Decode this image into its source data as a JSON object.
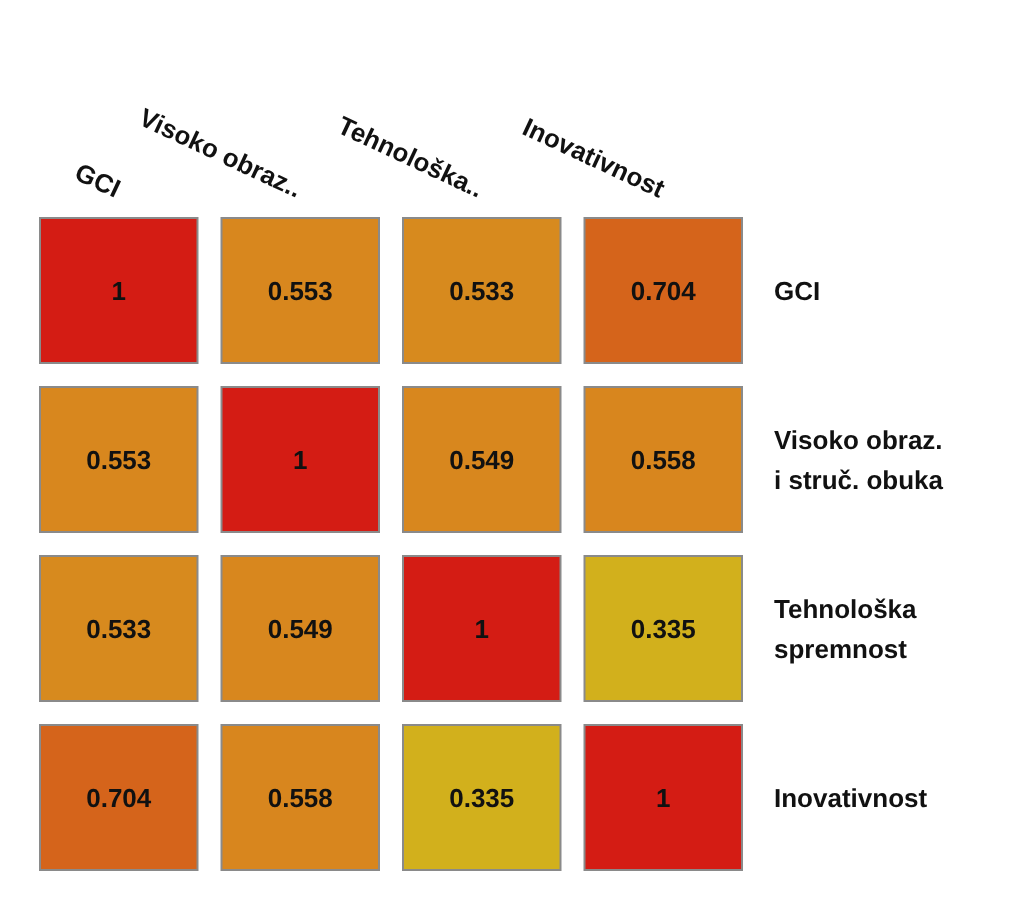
{
  "chart_data": {
    "type": "heatmap",
    "categories": [
      "GCI",
      "Visoko obraz..",
      "Tehnološka..",
      "Inovativnost"
    ],
    "y_categories": [
      null,
      null,
      null,
      null
    ],
    "y2_categories": [
      "GCI",
      "Visoko obraz.\ni struč. obuka",
      "Tehnološka\nspremnost",
      "Inovativnost"
    ],
    "cells": [
      [
        1,
        0.553,
        0.533,
        0.704
      ],
      [
        0.553,
        1,
        0.549,
        0.558
      ],
      [
        0.533,
        0.549,
        1,
        0.335
      ],
      [
        0.704,
        0.558,
        0.335,
        1
      ]
    ],
    "colors": [
      "#d2b01c",
      "#d8861e",
      "#d4531a",
      "#d41c14"
    ],
    "data_labels": true
  }
}
